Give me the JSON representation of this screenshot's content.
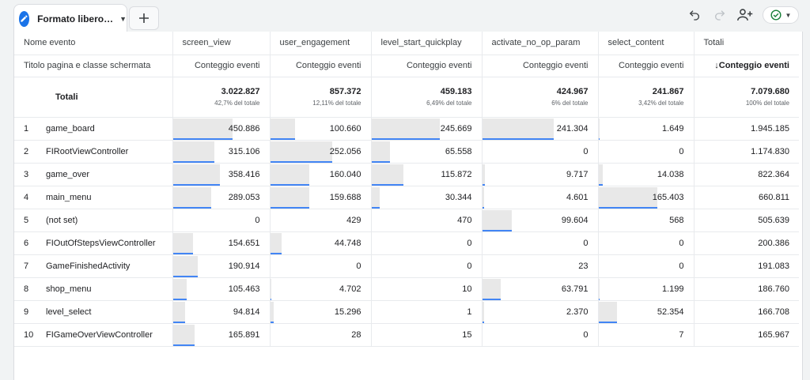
{
  "tab": {
    "label": "Formato libero…",
    "icon": "pencil-icon",
    "caret_icon": "dropdown-caret-icon"
  },
  "add_tab_icon": "plus-icon",
  "toolbar": {
    "icons": [
      "undo-icon",
      "redo-icon",
      "share-user-icon",
      "status-check-icon"
    ]
  },
  "colors": {
    "accent": "#1a73e8",
    "bar_fill": "#e8e8e8",
    "bar_line": "#4285f4",
    "status": "#188038"
  },
  "table": {
    "dimension_header": "Nome evento",
    "row_dimension_label": "Titolo pagina e classe schermata",
    "columns": [
      {
        "name": "screen_view",
        "metric": "Conteggio eventi"
      },
      {
        "name": "user_engagement",
        "metric": "Conteggio eventi"
      },
      {
        "name": "level_start_quickplay",
        "metric": "Conteggio eventi"
      },
      {
        "name": "activate_no_op_param",
        "metric": "Conteggio eventi"
      },
      {
        "name": "select_content",
        "metric": "Conteggio eventi"
      },
      {
        "name": "Totali",
        "metric": "Conteggio eventi",
        "sorted": true,
        "sort_icon": "arrow-down-icon"
      }
    ],
    "totals_label": "Totali",
    "totals": [
      {
        "value": "3.022.827",
        "pct": "42,7% del totale"
      },
      {
        "value": "857.372",
        "pct": "12,11% del totale"
      },
      {
        "value": "459.183",
        "pct": "6,49% del totale"
      },
      {
        "value": "424.967",
        "pct": "6% del totale"
      },
      {
        "value": "241.867",
        "pct": "3,42% del totale"
      },
      {
        "value": "7.079.680",
        "pct": "100% del totale"
      }
    ],
    "rows": [
      {
        "n": "1",
        "name": "game_board",
        "values": [
          "450.886",
          "100.660",
          "245.669",
          "241.304",
          "1.649",
          "1.945.185"
        ],
        "fill": [
          1.0,
          0.4,
          1.0,
          1.0,
          0.01
        ]
      },
      {
        "n": "2",
        "name": "FIRootViewController",
        "values": [
          "315.106",
          "252.056",
          "65.558",
          "0",
          "0",
          "1.174.830"
        ],
        "fill": [
          0.7,
          1.0,
          0.27,
          0,
          0
        ]
      },
      {
        "n": "3",
        "name": "game_over",
        "values": [
          "358.416",
          "160.040",
          "115.872",
          "9.717",
          "14.038",
          "822.364"
        ],
        "fill": [
          0.79,
          0.63,
          0.47,
          0.04,
          0.08
        ]
      },
      {
        "n": "4",
        "name": "main_menu",
        "values": [
          "289.053",
          "159.688",
          "30.344",
          "4.601",
          "165.403",
          "660.811"
        ],
        "fill": [
          0.64,
          0.63,
          0.12,
          0.02,
          1.0
        ]
      },
      {
        "n": "5",
        "name": "(not set)",
        "values": [
          "0",
          "429",
          "470",
          "99.604",
          "568",
          "505.639"
        ],
        "fill": [
          0,
          0,
          0,
          0.41,
          0
        ]
      },
      {
        "n": "6",
        "name": "FIOutOfStepsViewController",
        "values": [
          "154.651",
          "44.748",
          "0",
          "0",
          "0",
          "200.386"
        ],
        "fill": [
          0.34,
          0.18,
          0,
          0,
          0
        ]
      },
      {
        "n": "7",
        "name": "GameFinishedActivity",
        "values": [
          "190.914",
          "0",
          "0",
          "23",
          "0",
          "191.083"
        ],
        "fill": [
          0.42,
          0,
          0,
          0,
          0
        ]
      },
      {
        "n": "8",
        "name": "shop_menu",
        "values": [
          "105.463",
          "4.702",
          "10",
          "63.791",
          "1.199",
          "186.760"
        ],
        "fill": [
          0.23,
          0.02,
          0,
          0.26,
          0.01
        ]
      },
      {
        "n": "9",
        "name": "level_select",
        "values": [
          "94.814",
          "15.296",
          "1",
          "2.370",
          "52.354",
          "166.708"
        ],
        "fill": [
          0.21,
          0.06,
          0,
          0.01,
          0.32
        ]
      },
      {
        "n": "10",
        "name": "FIGameOverViewController",
        "values": [
          "165.891",
          "28",
          "15",
          "0",
          "7",
          "165.967"
        ],
        "fill": [
          0.37,
          0,
          0,
          0,
          0
        ]
      }
    ]
  }
}
